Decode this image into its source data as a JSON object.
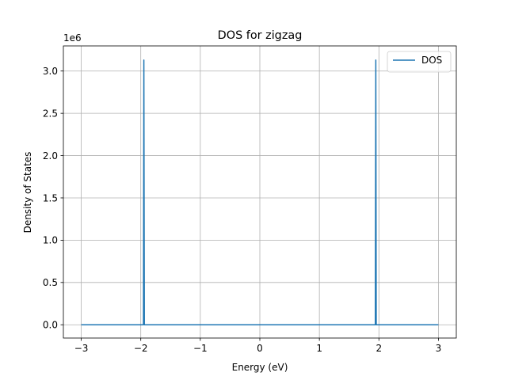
{
  "chart_data": {
    "type": "line",
    "title": "DOS for zigzag",
    "xlabel": "Energy (eV)",
    "ylabel": "Density of States",
    "y_offset_label": "1e6",
    "xlim": [
      -3.3,
      3.3
    ],
    "ylim": [
      -0.157,
      3.297
    ],
    "xticks": [
      -3,
      -2,
      -1,
      0,
      1,
      2,
      3
    ],
    "xtick_labels": [
      "−3",
      "−2",
      "−1",
      "0",
      "1",
      "2",
      "3"
    ],
    "yticks": [
      0.0,
      0.5,
      1.0,
      1.5,
      2.0,
      2.5,
      3.0
    ],
    "ytick_labels": [
      "0.0",
      "0.5",
      "1.0",
      "1.5",
      "2.0",
      "2.5",
      "3.0"
    ],
    "grid": true,
    "legend_position": "top-right",
    "series": [
      {
        "name": "DOS",
        "color": "#1f77b4",
        "x": [
          -3.0,
          -1.97,
          -1.955,
          -1.948,
          -1.94,
          -1.935,
          -1.925,
          -1.5,
          1.5,
          1.925,
          1.935,
          1.94,
          1.948,
          1.955,
          1.97,
          3.0
        ],
        "y": [
          0.0,
          0.0,
          0.0,
          3.13,
          0.0,
          0.0,
          0.0,
          0.0,
          0.0,
          0.0,
          0.0,
          0.0,
          3.13,
          0.0,
          0.0,
          0.0
        ]
      }
    ]
  }
}
